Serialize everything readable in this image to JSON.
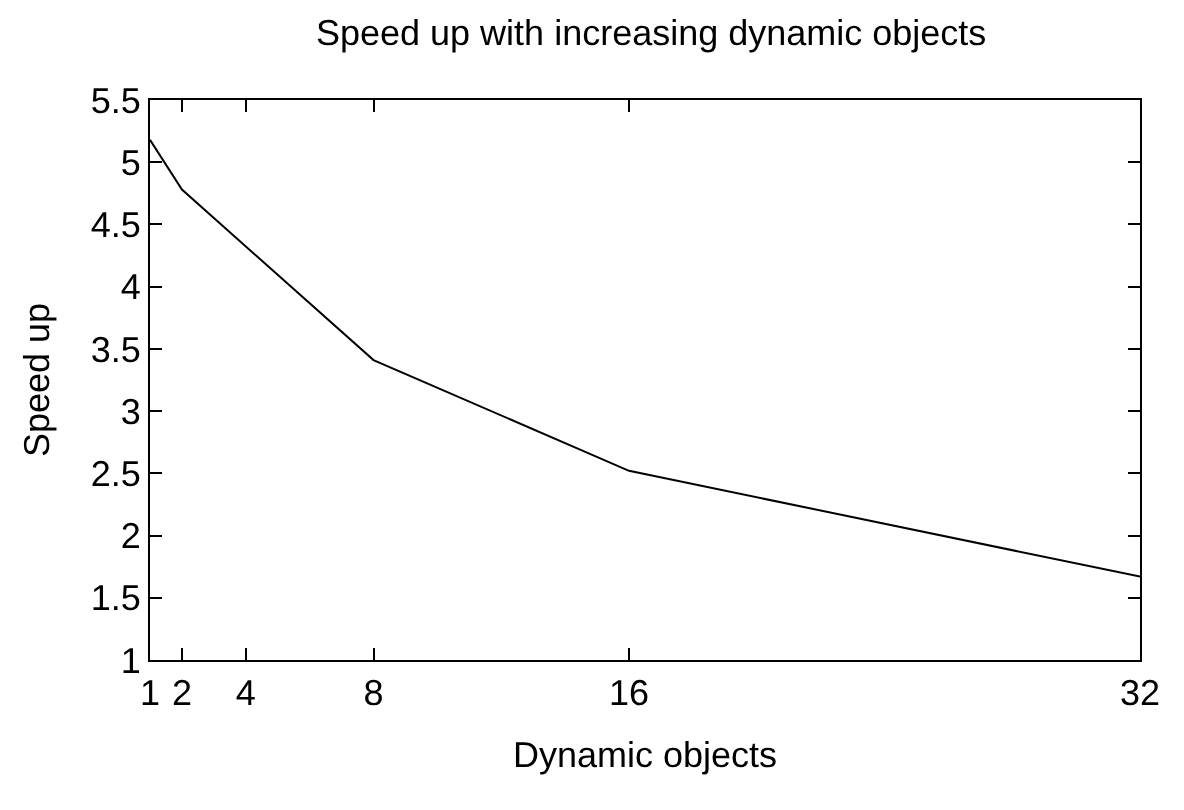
{
  "chart_data": {
    "type": "line",
    "title": "Speed up with increasing dynamic objects",
    "xlabel": "Dynamic objects",
    "ylabel": "Speed up",
    "x": [
      1,
      2,
      8,
      16,
      32
    ],
    "series": [
      {
        "color": "#000000",
        "values": [
          5.18,
          4.78,
          3.41,
          2.52,
          1.67
        ]
      }
    ],
    "xlim": [
      1,
      32
    ],
    "xticks": [
      1,
      2,
      4,
      8,
      16,
      32
    ],
    "ylim": [
      1,
      5.5
    ],
    "yticks": [
      1,
      1.5,
      2,
      2.5,
      3,
      3.5,
      4,
      4.5,
      5,
      5.5
    ],
    "marker": "none",
    "line_style": "solid"
  }
}
